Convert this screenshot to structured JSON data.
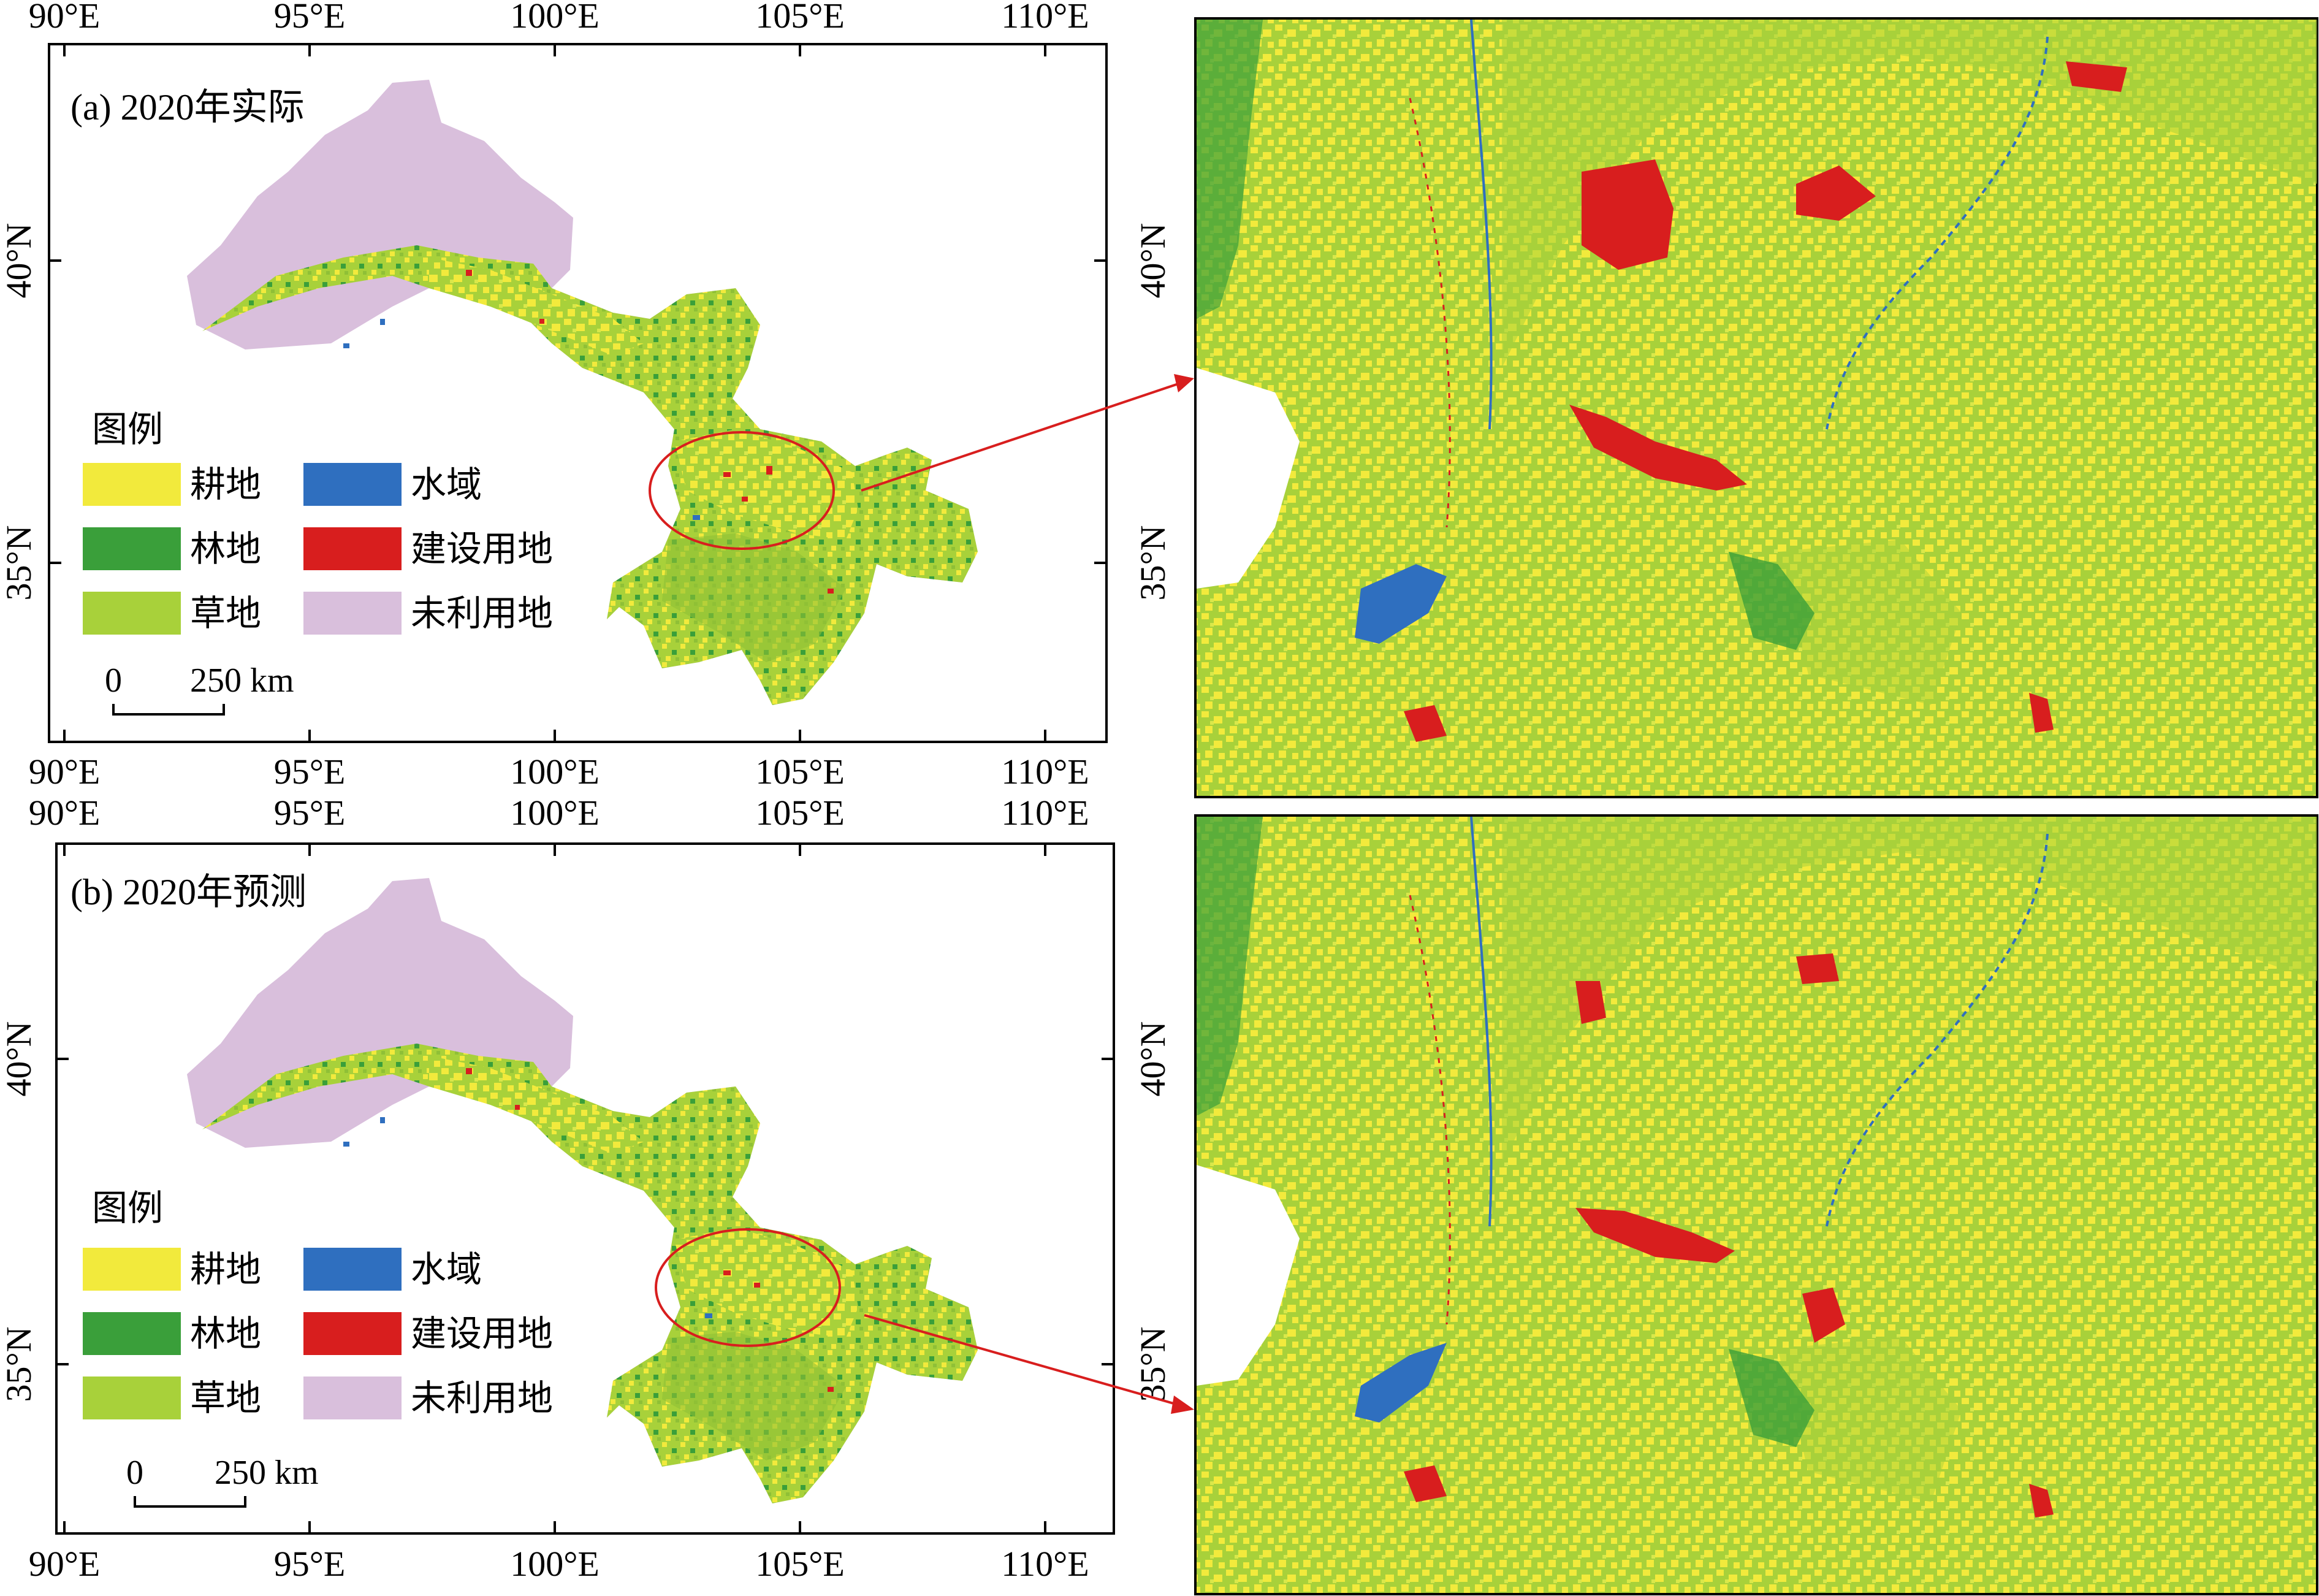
{
  "panels": [
    {
      "title": "(a) 2020年实际",
      "lon_ticks": [
        "90°E",
        "95°E",
        "100°E",
        "105°E",
        "110°E"
      ],
      "lat_ticks": [
        "40°N",
        "35°N"
      ],
      "legend_title": "图例",
      "scale_zero": "0",
      "scale_label": "250 km"
    },
    {
      "title": "(b) 2020年预测",
      "lon_ticks": [
        "90°E",
        "95°E",
        "100°E",
        "105°E",
        "110°E"
      ],
      "lat_ticks": [
        "40°N",
        "35°N"
      ],
      "legend_title": "图例",
      "scale_zero": "0",
      "scale_label": "250 km"
    }
  ],
  "zoom_lat_ticks": [
    "40°N",
    "35°N"
  ],
  "legend": [
    {
      "label": "耕地",
      "color": "#f2ea3c"
    },
    {
      "label": "林地",
      "color": "#3a9f3a"
    },
    {
      "label": "草地",
      "color": "#a8d13a"
    },
    {
      "label": "水域",
      "color": "#2f6fbf"
    },
    {
      "label": "建设用地",
      "color": "#d81e1e"
    },
    {
      "label": "未利用地",
      "color": "#d9bfdc"
    }
  ],
  "colors": {
    "cropland": "#f2ea3c",
    "forest": "#3a9f3a",
    "grassland": "#a8d13a",
    "water": "#2f6fbf",
    "built": "#d81e1e",
    "unused": "#d9bfdc",
    "arrow": "#d81e1e"
  }
}
